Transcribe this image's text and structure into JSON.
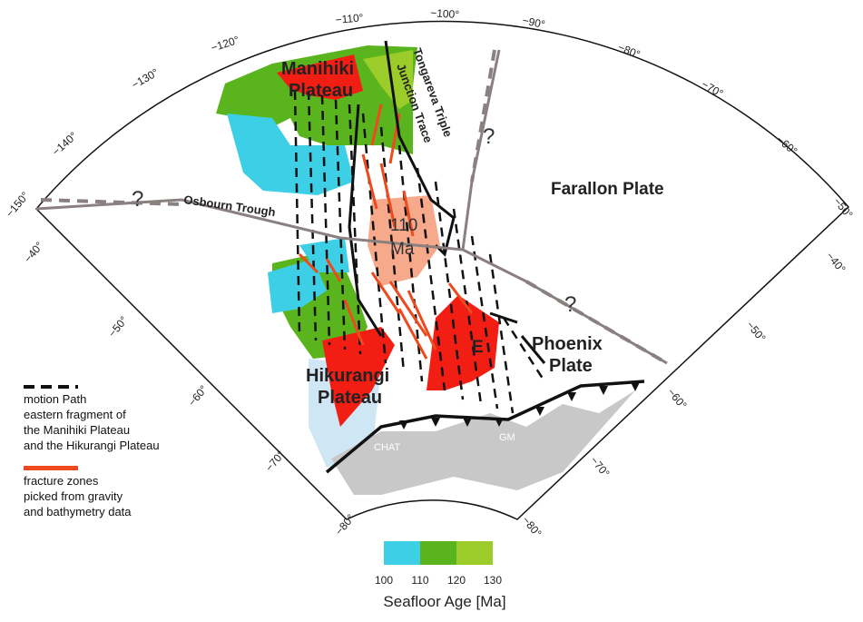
{
  "map": {
    "longitude_labels": [
      "−150°",
      "−140°",
      "−130°",
      "−120°",
      "−110°",
      "−100°",
      "−90°",
      "−80°",
      "−70°",
      "−60°",
      "−50°"
    ],
    "latitude_labels_left": [
      "−40°",
      "−50°",
      "−60°",
      "−70°",
      "−80°"
    ],
    "latitude_labels_right": [
      "−40°",
      "−50°",
      "−60°",
      "−70°",
      "−80°"
    ],
    "labels": {
      "manihiki": "Manihiki",
      "manihiki2": "Plateau",
      "tongareva1": "Tongareva Triple",
      "tongareva2": "Junction Trace",
      "osbourn": "Osbourn Trough",
      "farallon": "Farallon Plate",
      "age110a": "110",
      "age110b": "Ma",
      "phoenix1": "Phoenix",
      "phoenix2": "Plate",
      "e_label": "E",
      "hikurangi1": "Hikurangi",
      "hikurangi2": "Plateau",
      "chat": "CHAT",
      "gm": "GM",
      "q1": "?",
      "q2": "?",
      "q3": "?"
    }
  },
  "legend": {
    "motion_path": "motion Path\neastern fragment of\nthe Manihiki Plateau\nand the Hikurangi Plateau",
    "motion_path_lines": [
      "motion Path",
      "eastern fragment of",
      "the Manihiki Plateau",
      "and the Hikurangi Plateau"
    ],
    "fracture_lines": [
      "fracture zones",
      "picked from gravity",
      "and bathymetry data"
    ]
  },
  "colorbar": {
    "colors": [
      "#3ccfe6",
      "#5ab41e",
      "#9ccc2a"
    ],
    "ticks": [
      "100",
      "110",
      "120",
      "130"
    ],
    "title": "Seafloor Age [Ma]"
  },
  "colors": {
    "red": "#f21e14",
    "salmon": "#f7a98c",
    "fracture": "#ee4a1e",
    "light_blue": "#cfe6f5",
    "grey_land": "#c8c8c8"
  }
}
